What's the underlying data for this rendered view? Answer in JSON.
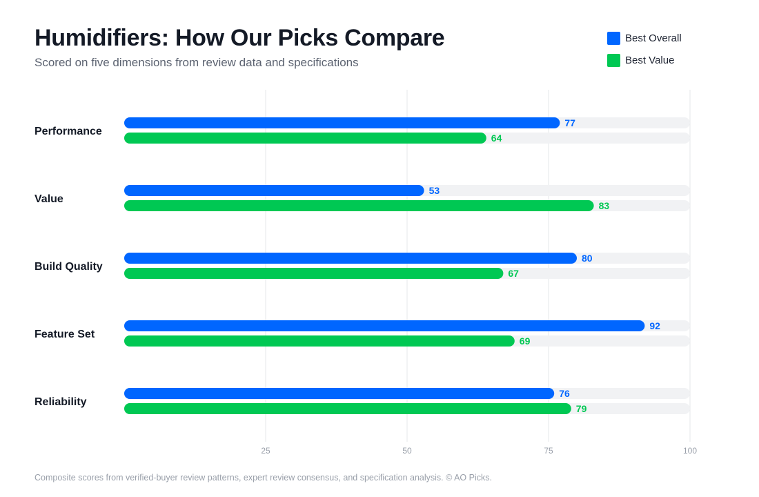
{
  "header": {
    "title": "Humidifiers: How Our Picks Compare",
    "subtitle": "Scored on five dimensions from review data and specifications"
  },
  "footer": {
    "note": "Composite scores from verified-buyer review patterns, expert review consensus, and specification analysis. © AO Picks."
  },
  "colors": {
    "best_overall": "#0066ff",
    "best_value": "#00c853",
    "track": "#f1f2f4",
    "grid": "#e6e7ea"
  },
  "chart_data": {
    "type": "bar",
    "orientation": "horizontal",
    "title": "Humidifiers: How Our Picks Compare",
    "subtitle": "Scored on five dimensions from review data and specifications",
    "categories": [
      "Performance",
      "Value",
      "Build Quality",
      "Feature Set",
      "Reliability"
    ],
    "series": [
      {
        "name": "Best Overall",
        "color": "#0066ff",
        "values": [
          77,
          53,
          80,
          92,
          76
        ]
      },
      {
        "name": "Best Value",
        "color": "#00c853",
        "values": [
          64,
          83,
          67,
          69,
          79
        ]
      }
    ],
    "xlim": [
      0,
      100
    ],
    "xticks": [
      25,
      50,
      75,
      100
    ],
    "grid": true,
    "data_labels": true,
    "legend_position": "top-right"
  }
}
